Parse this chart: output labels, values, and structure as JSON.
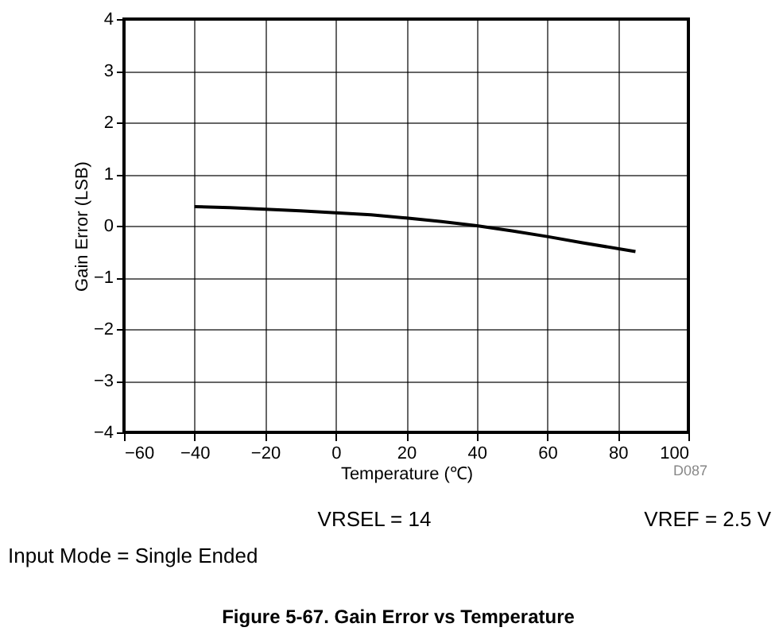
{
  "chart_data": {
    "type": "line",
    "title": "Figure 5-67. Gain Error vs Temperature",
    "xlabel": "Temperature (℃)",
    "ylabel": "Gain Error (LSB)",
    "x": [
      -40,
      -30,
      -20,
      -10,
      0,
      10,
      20,
      30,
      40,
      50,
      60,
      70,
      85
    ],
    "series": [
      {
        "color": "#000000",
        "values": [
          0.37,
          0.35,
          0.32,
          0.29,
          0.25,
          0.21,
          0.15,
          0.08,
          0.0,
          -0.1,
          -0.21,
          -0.33,
          -0.5
        ]
      }
    ],
    "xlim": [
      -60,
      100
    ],
    "xticks": [
      -60,
      -40,
      -20,
      0,
      20,
      40,
      60,
      80,
      100
    ],
    "ylim": [
      -4,
      4
    ],
    "yticks": [
      -4,
      -3,
      -2,
      -1,
      0,
      1,
      2,
      3,
      4
    ],
    "grid": true,
    "marker": "none",
    "line_style": "solid",
    "annotations": [
      "D087",
      "VRSEL = 14",
      "VREF = 2.5 V",
      "Input Mode = Single Ended"
    ]
  }
}
